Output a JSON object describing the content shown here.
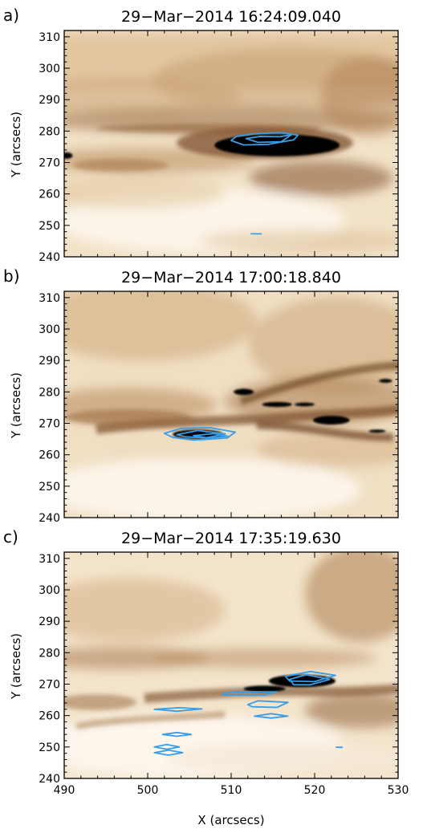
{
  "chart_data": [
    {
      "type": "heatmap",
      "panel_label": "a)",
      "title": "29−Mar−2014  16:24:09.040",
      "xlabel": "",
      "ylabel": "Y (arcsecs)",
      "xlim": [
        490,
        530
      ],
      "ylim": [
        240,
        312
      ],
      "x_ticks": [],
      "y_ticks": [
        240,
        250,
        260,
        270,
        280,
        290,
        300,
        310
      ],
      "y_tick_labels": [
        "240",
        "250",
        "260",
        "270",
        "280",
        "290",
        "300",
        "310"
      ],
      "colormap": [
        "#ffffff",
        "#eedbc0",
        "#d9b98f",
        "#b88a5c",
        "#7a4e2a",
        "#2a160a",
        "#000000"
      ],
      "contour_color": "#3a9de6",
      "dark_regions": [
        {
          "cx": 515.5,
          "cy": 275.5,
          "rx": 7.5,
          "ry": 3.5
        },
        {
          "cx": 490.3,
          "cy": 272.2,
          "rx": 0.7,
          "ry": 1.0
        }
      ],
      "contours": [
        {
          "points": [
            [
              510,
              277
            ],
            [
              510.6,
              278.3
            ],
            [
              513,
              279.2
            ],
            [
              516,
              279.5
            ],
            [
              518,
              278.7
            ],
            [
              517.5,
              277.2
            ],
            [
              514.5,
              275.8
            ],
            [
              511.5,
              275.6
            ]
          ]
        },
        {
          "points": [
            [
              511.8,
              277.6
            ],
            [
              513.5,
              278.3
            ],
            [
              515.8,
              278.2
            ],
            [
              517.2,
              278.8
            ],
            [
              516,
              276.6
            ],
            [
              513.2,
              276.4
            ]
          ]
        },
        {
          "points": [
            [
              512.4,
              247.3
            ],
            [
              513.6,
              247.3
            ]
          ]
        }
      ]
    },
    {
      "type": "heatmap",
      "panel_label": "b)",
      "title": "29−Mar−2014  17:00:18.840",
      "xlabel": "",
      "ylabel": "Y (arcsecs)",
      "xlim": [
        490,
        530
      ],
      "ylim": [
        240,
        312
      ],
      "x_ticks": [],
      "y_ticks": [
        240,
        250,
        260,
        270,
        280,
        290,
        300,
        310
      ],
      "y_tick_labels": [
        "240",
        "250",
        "260",
        "270",
        "280",
        "290",
        "300",
        "310"
      ],
      "colormap": [
        "#ffffff",
        "#eedbc0",
        "#d9b98f",
        "#b88a5c",
        "#7a4e2a",
        "#2a160a",
        "#000000"
      ],
      "contour_color": "#3a9de6",
      "dark_regions": [
        {
          "cx": 506.0,
          "cy": 266.5,
          "rx": 3.0,
          "ry": 1.5
        },
        {
          "cx": 522.0,
          "cy": 271.0,
          "rx": 2.2,
          "ry": 1.4
        },
        {
          "cx": 515.5,
          "cy": 276.0,
          "rx": 1.8,
          "ry": 0.8
        },
        {
          "cx": 518.8,
          "cy": 276.0,
          "rx": 1.2,
          "ry": 0.6
        },
        {
          "cx": 511.5,
          "cy": 280.0,
          "rx": 1.2,
          "ry": 1.0
        },
        {
          "cx": 527.5,
          "cy": 267.5,
          "rx": 1.0,
          "ry": 0.5
        },
        {
          "cx": 528.5,
          "cy": 283.5,
          "rx": 0.8,
          "ry": 0.6
        }
      ],
      "contours": [
        {
          "points": [
            [
              502,
              266.8
            ],
            [
              504,
              268.4
            ],
            [
              507.5,
              268.6
            ],
            [
              510.5,
              267.2
            ],
            [
              509.5,
              265.3
            ],
            [
              505.5,
              264.7
            ],
            [
              503,
              265.5
            ]
          ]
        },
        {
          "points": [
            [
              503.5,
              266.4
            ],
            [
              506,
              267.7
            ],
            [
              509.3,
              266.6
            ],
            [
              507,
              265.4
            ],
            [
              504.5,
              265.7
            ]
          ]
        },
        {
          "points": [
            [
              505.5,
              266.1
            ],
            [
              508,
              266.7
            ],
            [
              509.6,
              265.9
            ],
            [
              507.3,
              265.3
            ]
          ]
        }
      ]
    },
    {
      "type": "heatmap",
      "panel_label": "c)",
      "title": "29−Mar−2014  17:35:19.630",
      "xlabel": "X (arcsecs)",
      "ylabel": "Y (arcsecs)",
      "xlim": [
        490,
        530
      ],
      "ylim": [
        240,
        312
      ],
      "x_ticks": [
        490,
        500,
        510,
        520,
        530
      ],
      "x_tick_labels": [
        "490",
        "500",
        "510",
        "520",
        "530"
      ],
      "y_ticks": [
        240,
        250,
        260,
        270,
        280,
        290,
        300,
        310
      ],
      "y_tick_labels": [
        "240",
        "250",
        "260",
        "270",
        "280",
        "290",
        "300",
        "310"
      ],
      "colormap": [
        "#ffffff",
        "#eedbc0",
        "#d9b98f",
        "#b88a5c",
        "#7a4e2a",
        "#2a160a",
        "#000000"
      ],
      "contour_color": "#3a9de6",
      "dark_regions": [
        {
          "cx": 518.5,
          "cy": 271.0,
          "rx": 4.0,
          "ry": 2.0
        },
        {
          "cx": 514.0,
          "cy": 268.5,
          "rx": 2.5,
          "ry": 1.0
        }
      ],
      "contours": [
        {
          "points": [
            [
              516.5,
              272.5
            ],
            [
              519.5,
              274
            ],
            [
              522.5,
              272.8
            ],
            [
              520,
              270.8
            ],
            [
              517,
              271
            ]
          ]
        },
        {
          "points": [
            [
              517,
              271.5
            ],
            [
              519,
              273
            ],
            [
              521.8,
              271.5
            ],
            [
              519.5,
              269.8
            ],
            [
              517.5,
              269.8
            ]
          ]
        },
        {
          "points": [
            [
              509,
              267
            ],
            [
              510.5,
              267.6
            ],
            [
              515.5,
              267.5
            ],
            [
              514,
              266.5
            ],
            [
              509,
              266.6
            ]
          ]
        },
        {
          "points": [
            [
              512,
              263.5
            ],
            [
              513.2,
              264.7
            ],
            [
              516.8,
              264.2
            ],
            [
              515.5,
              262.6
            ],
            [
              512.5,
              262.8
            ]
          ]
        },
        {
          "points": [
            [
              512.8,
              259.8
            ],
            [
              514.8,
              260.6
            ],
            [
              516.8,
              259.8
            ],
            [
              514.8,
              259.2
            ]
          ]
        },
        {
          "points": [
            [
              500.8,
              262
            ],
            [
              503.8,
              262.5
            ],
            [
              506.5,
              262.1
            ],
            [
              503.5,
              261.4
            ]
          ]
        },
        {
          "points": [
            [
              501.8,
              254
            ],
            [
              503.5,
              254.6
            ],
            [
              505.2,
              254
            ],
            [
              503.5,
              253.4
            ]
          ]
        },
        {
          "points": [
            [
              500.8,
              250
            ],
            [
              502.3,
              250.8
            ],
            [
              503.8,
              250
            ],
            [
              502.3,
              249.3
            ]
          ]
        },
        {
          "points": [
            [
              500.8,
              248.2
            ],
            [
              502.5,
              249
            ],
            [
              504.2,
              248.2
            ],
            [
              502.5,
              247.4
            ]
          ]
        },
        {
          "points": [
            [
              522.6,
              249.9
            ],
            [
              523.3,
              249.9
            ]
          ]
        }
      ]
    }
  ]
}
